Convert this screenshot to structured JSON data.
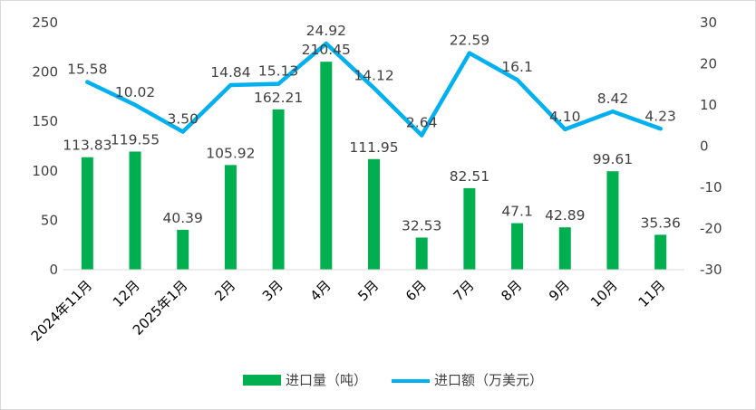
{
  "chart_data": {
    "type": "bar",
    "categories": [
      "2024年11月",
      "12月",
      "2025年1月",
      "2月",
      "3月",
      "4月",
      "5月",
      "6月",
      "7月",
      "8月",
      "9月",
      "10月",
      "11月"
    ],
    "series": [
      {
        "name": "进口量（吨）",
        "type": "bar",
        "axis": "left",
        "color": "#00b050",
        "values": [
          113.83,
          119.55,
          40.39,
          105.92,
          162.21,
          210.45,
          111.95,
          32.53,
          82.51,
          47.1,
          42.89,
          99.61,
          35.36
        ],
        "labels": [
          "113.83",
          "119.55",
          "40.39",
          "105.92",
          "162.21",
          "210.45",
          "111.95",
          "32.53",
          "82.51",
          "47.1",
          "42.89",
          "99.61",
          "35.36"
        ]
      },
      {
        "name": "进口额（万美元）",
        "type": "line",
        "axis": "right",
        "color": "#00b0f0",
        "values": [
          15.58,
          10.02,
          3.5,
          14.84,
          15.13,
          24.92,
          14.12,
          2.64,
          22.59,
          16.1,
          4.1,
          8.42,
          4.23
        ],
        "labels": [
          "15.58",
          "10.02",
          "3.50",
          "14.84",
          "15.13",
          "24.92",
          "14.12",
          "2.64",
          "22.59",
          "16.1",
          "4.10",
          "8.42",
          "4.23"
        ]
      }
    ],
    "y_left": {
      "ylim": [
        0,
        250
      ],
      "ticks": [
        "0",
        "50",
        "100",
        "150",
        "200",
        "250"
      ]
    },
    "y_right": {
      "ylim": [
        -30,
        30
      ],
      "ticks": [
        "-30",
        "-20",
        "-10",
        "0",
        "10",
        "20",
        "30"
      ]
    },
    "grid": false,
    "legend_position": "bottom"
  }
}
